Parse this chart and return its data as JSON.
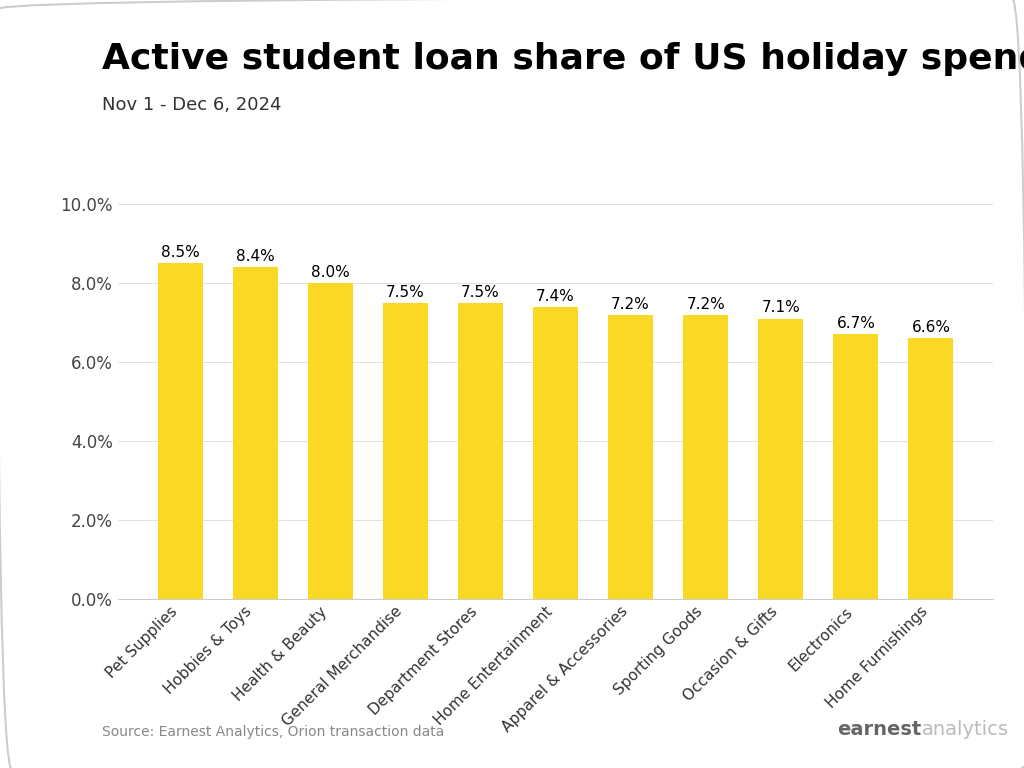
{
  "title": "Active student loan share of US holiday spending",
  "subtitle": "Nov 1 - Dec 6, 2024",
  "source": "Source: Earnest Analytics, Orion transaction data",
  "categories": [
    "Pet Supplies",
    "Hobbies & Toys",
    "Health & Beauty",
    "General Merchandise",
    "Department Stores",
    "Home Entertainment",
    "Apparel & Accessories",
    "Sporting Goods",
    "Occasion & Gifts",
    "Electronics",
    "Home Furnishings"
  ],
  "values": [
    8.5,
    8.4,
    8.0,
    7.5,
    7.5,
    7.4,
    7.2,
    7.2,
    7.1,
    6.7,
    6.6
  ],
  "bar_color": "#F9D923",
  "bar_edge_color": "none",
  "ylim": [
    0,
    10.5
  ],
  "yticks": [
    0.0,
    2.0,
    4.0,
    6.0,
    8.0,
    10.0
  ],
  "ytick_labels": [
    "0.0%",
    "2.0%",
    "4.0%",
    "6.0%",
    "8.0%",
    "10.0%"
  ],
  "title_fontsize": 26,
  "subtitle_fontsize": 13,
  "source_fontsize": 10,
  "label_fontsize": 11,
  "tick_label_fontsize": 12,
  "bar_label_fontsize": 11,
  "background_color": "#ffffff",
  "earnest_bold": "earnest",
  "earnest_normal": "analytics",
  "earnest_color_bold": "#666666",
  "earnest_color_normal": "#bbbbbb"
}
